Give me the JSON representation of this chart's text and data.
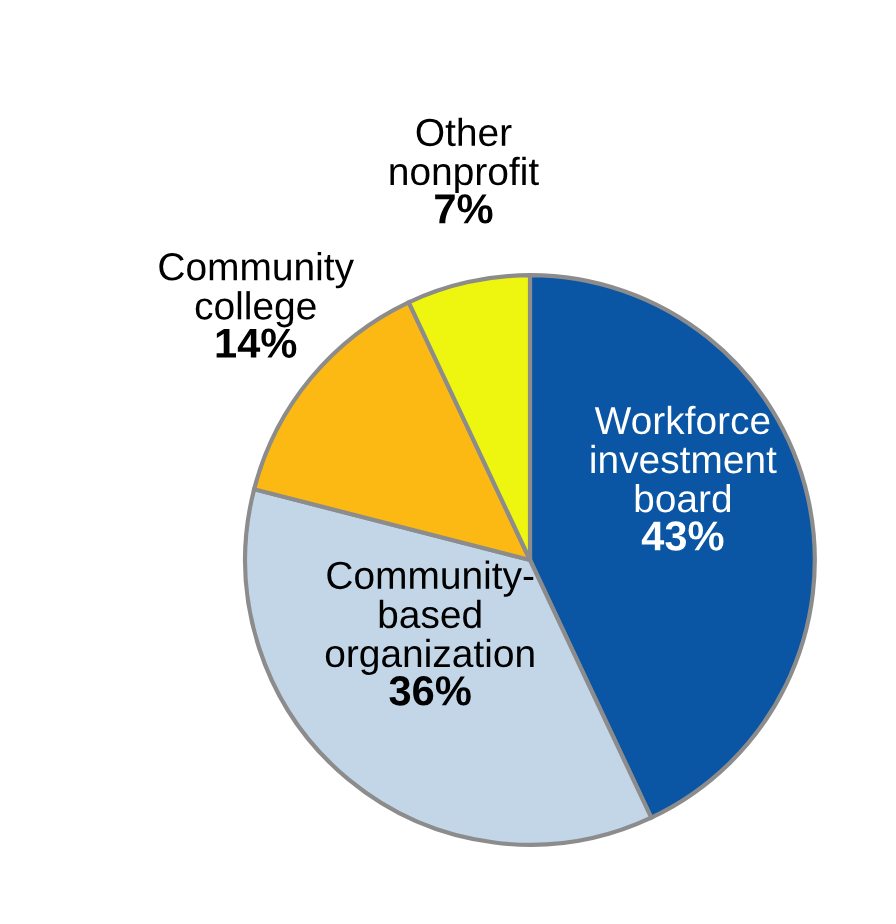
{
  "chart_data": {
    "type": "pie",
    "categories": [
      "Workforce\ninvestment\nboard",
      "Community-\nbased\norganization",
      "Community\ncollege",
      "Other\nnonprofit"
    ],
    "values": [
      43,
      36,
      14,
      7
    ],
    "colors": [
      "#0b56a4",
      "#c3d6e8",
      "#fdb913",
      "#eef50f"
    ],
    "value_labels": [
      "43%",
      "36%",
      "14%",
      "7%"
    ],
    "legend": false
  }
}
